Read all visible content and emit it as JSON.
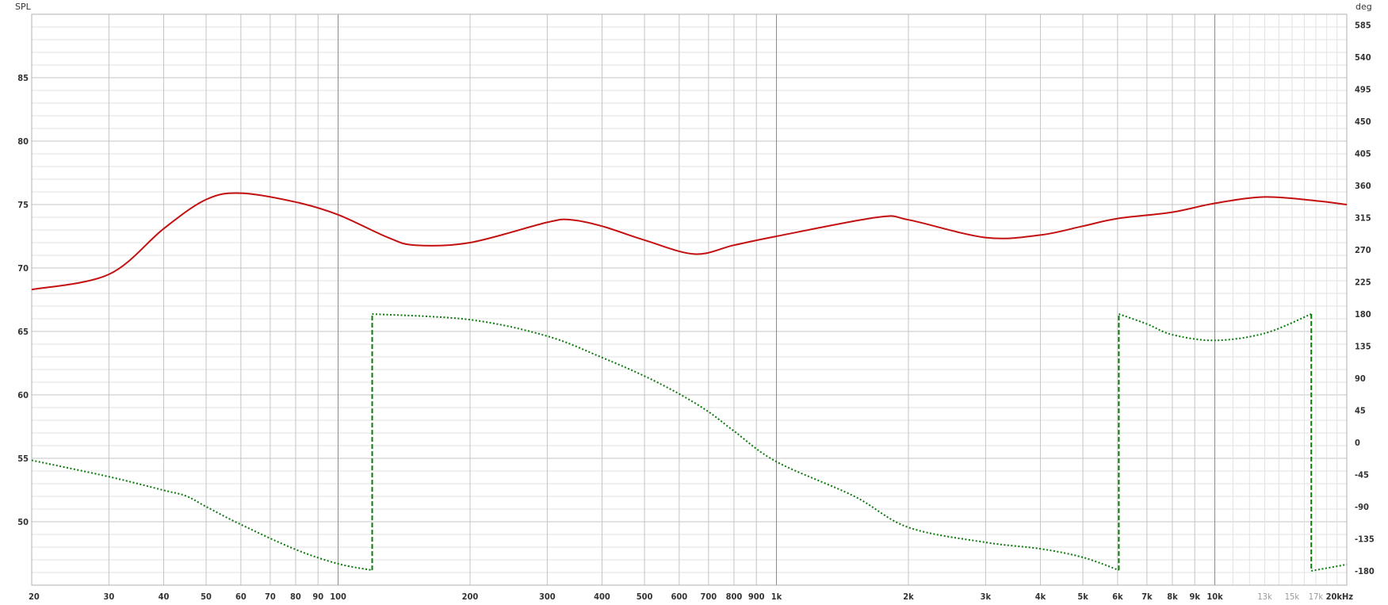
{
  "chart_data": {
    "type": "line",
    "title": "",
    "xlabel": "",
    "x_unit": "Hz",
    "ylabel_left": "SPL",
    "ylabel_right": "deg",
    "x_scale": "log",
    "xlim": [
      20,
      20000
    ],
    "ylim_left": [
      45,
      90
    ],
    "ylim_right": [
      -200,
      600
    ],
    "grid": true,
    "colors": {
      "spl": "#c41010",
      "phase": "#0a7a0a",
      "grid_major": "#c4c4c4",
      "grid_minor": "#e2e2e2",
      "grid_decade": "#8a8a8a"
    },
    "x_ticks": [
      {
        "f": 20,
        "label": "20"
      },
      {
        "f": 30,
        "label": "30"
      },
      {
        "f": 40,
        "label": "40"
      },
      {
        "f": 50,
        "label": "50"
      },
      {
        "f": 60,
        "label": "60"
      },
      {
        "f": 70,
        "label": "70"
      },
      {
        "f": 80,
        "label": "80"
      },
      {
        "f": 90,
        "label": "90"
      },
      {
        "f": 100,
        "label": "100"
      },
      {
        "f": 200,
        "label": "200"
      },
      {
        "f": 300,
        "label": "300"
      },
      {
        "f": 400,
        "label": "400"
      },
      {
        "f": 500,
        "label": "500"
      },
      {
        "f": 600,
        "label": "600"
      },
      {
        "f": 700,
        "label": "700"
      },
      {
        "f": 800,
        "label": "800"
      },
      {
        "f": 900,
        "label": "900"
      },
      {
        "f": 1000,
        "label": "1k"
      },
      {
        "f": 2000,
        "label": "2k"
      },
      {
        "f": 3000,
        "label": "3k"
      },
      {
        "f": 4000,
        "label": "4k"
      },
      {
        "f": 5000,
        "label": "5k"
      },
      {
        "f": 6000,
        "label": "6k"
      },
      {
        "f": 7000,
        "label": "7k"
      },
      {
        "f": 8000,
        "label": "8k"
      },
      {
        "f": 9000,
        "label": "9k"
      },
      {
        "f": 10000,
        "label": "10k"
      },
      {
        "f": 13000,
        "label": "13k",
        "minor": true
      },
      {
        "f": 15000,
        "label": "15k",
        "minor": true
      },
      {
        "f": 17000,
        "label": "17k",
        "minor": true
      },
      {
        "f": 20000,
        "label": "20kHz"
      }
    ],
    "y_ticks_left": [
      85,
      80,
      75,
      70,
      65,
      60,
      55,
      50
    ],
    "y_ticks_right": [
      585,
      540,
      495,
      450,
      405,
      360,
      315,
      270,
      225,
      180,
      135,
      90,
      45,
      0,
      -45,
      -90,
      -135,
      -180
    ],
    "series": [
      {
        "axis": "left",
        "style": "solid",
        "points": [
          [
            20,
            68.3
          ],
          [
            30,
            69.5
          ],
          [
            40,
            73.1
          ],
          [
            50,
            75.4
          ],
          [
            60,
            75.9
          ],
          [
            80,
            75.2
          ],
          [
            100,
            74.2
          ],
          [
            130,
            72.4
          ],
          [
            150,
            71.8
          ],
          [
            200,
            72.0
          ],
          [
            300,
            73.6
          ],
          [
            340,
            73.8
          ],
          [
            400,
            73.3
          ],
          [
            500,
            72.2
          ],
          [
            650,
            71.1
          ],
          [
            800,
            71.8
          ],
          [
            1000,
            72.5
          ],
          [
            1700,
            74.0
          ],
          [
            2000,
            73.8
          ],
          [
            3000,
            72.4
          ],
          [
            4000,
            72.6
          ],
          [
            5000,
            73.3
          ],
          [
            6000,
            73.9
          ],
          [
            8000,
            74.4
          ],
          [
            10000,
            75.1
          ],
          [
            13000,
            75.6
          ],
          [
            17000,
            75.3
          ],
          [
            20000,
            75.0
          ]
        ]
      },
      {
        "axis": "right",
        "style": "dotted",
        "points": [
          [
            20,
            -25
          ],
          [
            30,
            -48
          ],
          [
            40,
            -67
          ],
          [
            45,
            -75
          ],
          [
            50,
            -90
          ],
          [
            60,
            -115
          ],
          [
            80,
            -150
          ],
          [
            100,
            -170
          ],
          [
            119.6,
            -179
          ],
          [
            119.6,
            180
          ],
          [
            200,
            172
          ],
          [
            300,
            149
          ],
          [
            400,
            119
          ],
          [
            500,
            93
          ],
          [
            600,
            68
          ],
          [
            700,
            43
          ],
          [
            800,
            16
          ],
          [
            1000,
            -27
          ],
          [
            1500,
            -75
          ],
          [
            2000,
            -119
          ],
          [
            3000,
            -140
          ],
          [
            4000,
            -149
          ],
          [
            5000,
            -161
          ],
          [
            6040,
            -179
          ],
          [
            6040,
            180
          ],
          [
            7000,
            166
          ],
          [
            8000,
            151
          ],
          [
            10000,
            143
          ],
          [
            13000,
            153
          ],
          [
            16600,
            180
          ],
          [
            16600,
            -180
          ],
          [
            20000,
            -171
          ]
        ]
      }
    ]
  }
}
